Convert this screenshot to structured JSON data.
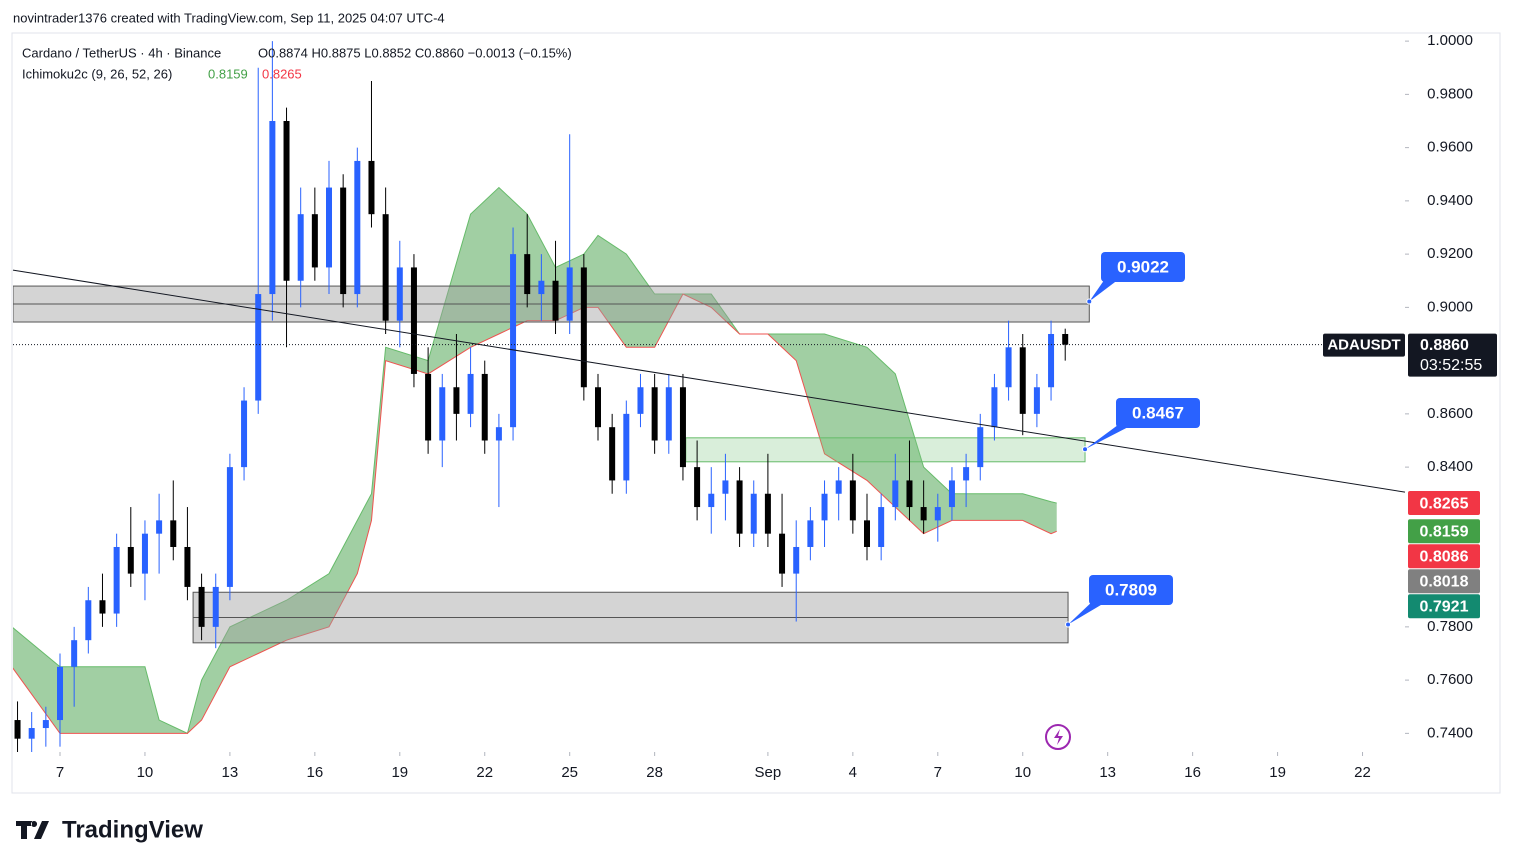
{
  "header": "novintrader1376 created with TradingView.com, Sep 11, 2025 04:07 UTC-4",
  "footer": "TradingView",
  "chart_data": {
    "type": "candlestick",
    "legend": {
      "symbol": "Cardano / TetherUS · 4h · Binance",
      "ohlc": "O0.8874 H0.8875 L0.8852 C0.8860 −0.0013 (−0.15%)",
      "indicator": "Ichimoku2c (9, 26, 52, 26)",
      "indicator_values": [
        {
          "value": 0.8159,
          "label": "0.8159",
          "color": "#43a047"
        },
        {
          "value": 0.8265,
          "label": "0.8265",
          "color": "#f23645"
        }
      ]
    },
    "xlim": [
      -1.66,
      47.5
    ],
    "ylim": [
      0.733,
      1.0023
    ],
    "xticks": [
      {
        "value": 0,
        "label": "7"
      },
      {
        "value": 3,
        "label": "10"
      },
      {
        "value": 6,
        "label": "13"
      },
      {
        "value": 9,
        "label": "16"
      },
      {
        "value": 12,
        "label": "19"
      },
      {
        "value": 15,
        "label": "22"
      },
      {
        "value": 18,
        "label": "25"
      },
      {
        "value": 21,
        "label": "28"
      },
      {
        "value": 25,
        "label": "Sep"
      },
      {
        "value": 28,
        "label": "4"
      },
      {
        "value": 31,
        "label": "7"
      },
      {
        "value": 34,
        "label": "10"
      },
      {
        "value": 37,
        "label": "13"
      },
      {
        "value": 40,
        "label": "16"
      },
      {
        "value": 43,
        "label": "19"
      },
      {
        "value": 46,
        "label": "22"
      }
    ],
    "yticks": [
      {
        "value": 1,
        "label": "1.0000"
      },
      {
        "value": 0.98,
        "label": "0.9800"
      },
      {
        "value": 0.96,
        "label": "0.9600"
      },
      {
        "value": 0.94,
        "label": "0.9400"
      },
      {
        "value": 0.92,
        "label": "0.9200"
      },
      {
        "value": 0.9,
        "label": "0.9000"
      },
      {
        "value": 0.86,
        "label": "0.8600"
      },
      {
        "value": 0.84,
        "label": "0.8400"
      },
      {
        "value": 0.78,
        "label": "0.7800"
      },
      {
        "value": 0.76,
        "label": "0.7600"
      },
      {
        "value": 0.74,
        "label": "0.7400"
      }
    ],
    "up_color": "#2962ff",
    "down_color": "#000000",
    "candles": [
      {
        "x": -1.5,
        "open": 0.745,
        "high": 0.752,
        "low": 0.733,
        "close": 0.738
      },
      {
        "x": -1,
        "open": 0.738,
        "high": 0.748,
        "low": 0.733,
        "close": 0.742
      },
      {
        "x": -0.5,
        "open": 0.742,
        "high": 0.75,
        "low": 0.735,
        "close": 0.745
      },
      {
        "x": 0,
        "open": 0.745,
        "high": 0.77,
        "low": 0.735,
        "close": 0.765
      },
      {
        "x": 0.5,
        "open": 0.765,
        "high": 0.78,
        "low": 0.75,
        "close": 0.775
      },
      {
        "x": 1,
        "open": 0.775,
        "high": 0.795,
        "low": 0.77,
        "close": 0.79
      },
      {
        "x": 1.5,
        "open": 0.79,
        "high": 0.8,
        "low": 0.78,
        "close": 0.785
      },
      {
        "x": 2,
        "open": 0.785,
        "high": 0.815,
        "low": 0.78,
        "close": 0.81
      },
      {
        "x": 2.5,
        "open": 0.81,
        "high": 0.825,
        "low": 0.795,
        "close": 0.8
      },
      {
        "x": 3,
        "open": 0.8,
        "high": 0.82,
        "low": 0.79,
        "close": 0.815
      },
      {
        "x": 3.5,
        "open": 0.815,
        "high": 0.83,
        "low": 0.8,
        "close": 0.82
      },
      {
        "x": 4,
        "open": 0.82,
        "high": 0.835,
        "low": 0.805,
        "close": 0.81
      },
      {
        "x": 4.5,
        "open": 0.81,
        "high": 0.825,
        "low": 0.79,
        "close": 0.795
      },
      {
        "x": 5,
        "open": 0.795,
        "high": 0.8,
        "low": 0.775,
        "close": 0.78
      },
      {
        "x": 5.5,
        "open": 0.78,
        "high": 0.8,
        "low": 0.772,
        "close": 0.795
      },
      {
        "x": 6,
        "open": 0.795,
        "high": 0.845,
        "low": 0.79,
        "close": 0.84
      },
      {
        "x": 6.5,
        "open": 0.84,
        "high": 0.87,
        "low": 0.835,
        "close": 0.865
      },
      {
        "x": 7,
        "open": 0.865,
        "high": 0.99,
        "low": 0.86,
        "close": 0.905
      },
      {
        "x": 7.5,
        "open": 0.905,
        "high": 1.0,
        "low": 0.895,
        "close": 0.97
      },
      {
        "x": 8,
        "open": 0.97,
        "high": 0.975,
        "low": 0.885,
        "close": 0.91
      },
      {
        "x": 8.5,
        "open": 0.91,
        "high": 0.945,
        "low": 0.9,
        "close": 0.935
      },
      {
        "x": 9,
        "open": 0.935,
        "high": 0.945,
        "low": 0.91,
        "close": 0.915
      },
      {
        "x": 9.5,
        "open": 0.915,
        "high": 0.955,
        "low": 0.905,
        "close": 0.945
      },
      {
        "x": 10,
        "open": 0.945,
        "high": 0.95,
        "low": 0.9,
        "close": 0.905
      },
      {
        "x": 10.5,
        "open": 0.905,
        "high": 0.96,
        "low": 0.9,
        "close": 0.955
      },
      {
        "x": 11,
        "open": 0.955,
        "high": 0.985,
        "low": 0.93,
        "close": 0.935
      },
      {
        "x": 11.5,
        "open": 0.935,
        "high": 0.945,
        "low": 0.89,
        "close": 0.895
      },
      {
        "x": 12,
        "open": 0.895,
        "high": 0.925,
        "low": 0.885,
        "close": 0.915
      },
      {
        "x": 12.5,
        "open": 0.915,
        "high": 0.92,
        "low": 0.87,
        "close": 0.875
      },
      {
        "x": 13,
        "open": 0.875,
        "high": 0.885,
        "low": 0.845,
        "close": 0.85
      },
      {
        "x": 13.5,
        "open": 0.85,
        "high": 0.875,
        "low": 0.84,
        "close": 0.87
      },
      {
        "x": 14,
        "open": 0.87,
        "high": 0.89,
        "low": 0.85,
        "close": 0.86
      },
      {
        "x": 14.5,
        "open": 0.86,
        "high": 0.885,
        "low": 0.855,
        "close": 0.875
      },
      {
        "x": 15,
        "open": 0.875,
        "high": 0.88,
        "low": 0.845,
        "close": 0.85
      },
      {
        "x": 15.5,
        "open": 0.85,
        "high": 0.86,
        "low": 0.825,
        "close": 0.855
      },
      {
        "x": 16,
        "open": 0.855,
        "high": 0.93,
        "low": 0.85,
        "close": 0.92
      },
      {
        "x": 16.5,
        "open": 0.92,
        "high": 0.935,
        "low": 0.9,
        "close": 0.905
      },
      {
        "x": 17,
        "open": 0.905,
        "high": 0.92,
        "low": 0.895,
        "close": 0.91
      },
      {
        "x": 17.5,
        "open": 0.91,
        "high": 0.925,
        "low": 0.89,
        "close": 0.895
      },
      {
        "x": 18,
        "open": 0.895,
        "high": 0.965,
        "low": 0.89,
        "close": 0.915
      },
      {
        "x": 18.5,
        "open": 0.915,
        "high": 0.92,
        "low": 0.865,
        "close": 0.87
      },
      {
        "x": 19,
        "open": 0.87,
        "high": 0.875,
        "low": 0.85,
        "close": 0.855
      },
      {
        "x": 19.5,
        "open": 0.855,
        "high": 0.86,
        "low": 0.83,
        "close": 0.835
      },
      {
        "x": 20,
        "open": 0.835,
        "high": 0.865,
        "low": 0.83,
        "close": 0.86
      },
      {
        "x": 20.5,
        "open": 0.86,
        "high": 0.875,
        "low": 0.855,
        "close": 0.87
      },
      {
        "x": 21,
        "open": 0.87,
        "high": 0.875,
        "low": 0.845,
        "close": 0.85
      },
      {
        "x": 21.5,
        "open": 0.85,
        "high": 0.875,
        "low": 0.845,
        "close": 0.87
      },
      {
        "x": 22,
        "open": 0.87,
        "high": 0.875,
        "low": 0.835,
        "close": 0.84
      },
      {
        "x": 22.5,
        "open": 0.84,
        "high": 0.85,
        "low": 0.82,
        "close": 0.825
      },
      {
        "x": 23,
        "open": 0.825,
        "high": 0.84,
        "low": 0.815,
        "close": 0.83
      },
      {
        "x": 23.5,
        "open": 0.83,
        "high": 0.845,
        "low": 0.82,
        "close": 0.835
      },
      {
        "x": 24,
        "open": 0.835,
        "high": 0.84,
        "low": 0.81,
        "close": 0.815
      },
      {
        "x": 24.5,
        "open": 0.815,
        "high": 0.835,
        "low": 0.81,
        "close": 0.83
      },
      {
        "x": 25,
        "open": 0.83,
        "high": 0.845,
        "low": 0.81,
        "close": 0.815
      },
      {
        "x": 25.5,
        "open": 0.815,
        "high": 0.83,
        "low": 0.795,
        "close": 0.8
      },
      {
        "x": 26,
        "open": 0.8,
        "high": 0.82,
        "low": 0.782,
        "close": 0.81
      },
      {
        "x": 26.5,
        "open": 0.81,
        "high": 0.825,
        "low": 0.805,
        "close": 0.82
      },
      {
        "x": 27,
        "open": 0.82,
        "high": 0.835,
        "low": 0.81,
        "close": 0.83
      },
      {
        "x": 27.5,
        "open": 0.83,
        "high": 0.84,
        "low": 0.82,
        "close": 0.835
      },
      {
        "x": 28,
        "open": 0.835,
        "high": 0.845,
        "low": 0.815,
        "close": 0.82
      },
      {
        "x": 28.5,
        "open": 0.82,
        "high": 0.83,
        "low": 0.805,
        "close": 0.81
      },
      {
        "x": 29,
        "open": 0.81,
        "high": 0.83,
        "low": 0.805,
        "close": 0.825
      },
      {
        "x": 29.5,
        "open": 0.825,
        "high": 0.845,
        "low": 0.82,
        "close": 0.835
      },
      {
        "x": 30,
        "open": 0.835,
        "high": 0.85,
        "low": 0.82,
        "close": 0.825
      },
      {
        "x": 30.5,
        "open": 0.825,
        "high": 0.835,
        "low": 0.815,
        "close": 0.82
      },
      {
        "x": 31,
        "open": 0.82,
        "high": 0.83,
        "low": 0.812,
        "close": 0.825
      },
      {
        "x": 31.5,
        "open": 0.825,
        "high": 0.84,
        "low": 0.82,
        "close": 0.835
      },
      {
        "x": 32,
        "open": 0.835,
        "high": 0.845,
        "low": 0.825,
        "close": 0.84
      },
      {
        "x": 32.5,
        "open": 0.84,
        "high": 0.86,
        "low": 0.835,
        "close": 0.855
      },
      {
        "x": 33,
        "open": 0.855,
        "high": 0.875,
        "low": 0.85,
        "close": 0.87
      },
      {
        "x": 33.5,
        "open": 0.87,
        "high": 0.895,
        "low": 0.865,
        "close": 0.885
      },
      {
        "x": 34,
        "open": 0.885,
        "high": 0.89,
        "low": 0.852,
        "close": 0.86
      },
      {
        "x": 34.5,
        "open": 0.86,
        "high": 0.875,
        "low": 0.855,
        "close": 0.87
      },
      {
        "x": 35,
        "open": 0.87,
        "high": 0.895,
        "low": 0.865,
        "close": 0.89
      },
      {
        "x": 35.5,
        "open": 0.89,
        "high": 0.892,
        "low": 0.88,
        "close": 0.886
      }
    ],
    "cloud": {
      "fill": "rgba(67,160,71,0.5)",
      "color_a": "#66bb6a",
      "color_b": "#ef5350",
      "x": [
        -1.7,
        0,
        3,
        3.5,
        4.5,
        5,
        6,
        7,
        8,
        9.5,
        10.5,
        11,
        11.5,
        13,
        14.5,
        15.5,
        16.5,
        17.5,
        18.5,
        19,
        20,
        21,
        22,
        23,
        24,
        25,
        26,
        27,
        28.5,
        29.5,
        30.5,
        31.5,
        33,
        34,
        35,
        35.2
      ],
      "span_a": [
        0.78,
        0.765,
        0.765,
        0.745,
        0.74,
        0.76,
        0.78,
        0.785,
        0.79,
        0.8,
        0.82,
        0.83,
        0.885,
        0.88,
        0.935,
        0.945,
        0.935,
        0.915,
        0.92,
        0.927,
        0.92,
        0.905,
        0.905,
        0.905,
        0.89,
        0.89,
        0.89,
        0.89,
        0.885,
        0.875,
        0.84,
        0.83,
        0.83,
        0.83,
        0.827,
        0.8265
      ],
      "span_b": [
        0.765,
        0.74,
        0.74,
        0.74,
        0.74,
        0.745,
        0.765,
        0.77,
        0.775,
        0.78,
        0.8,
        0.82,
        0.88,
        0.875,
        0.885,
        0.89,
        0.895,
        0.895,
        0.9,
        0.9,
        0.885,
        0.885,
        0.905,
        0.9,
        0.89,
        0.89,
        0.88,
        0.845,
        0.835,
        0.825,
        0.815,
        0.82,
        0.82,
        0.82,
        0.815,
        0.8159
      ]
    },
    "trendline": {
      "x": [
        -1.66,
        47.5
      ],
      "y": [
        0.914,
        0.8306
      ]
    },
    "zones": [
      {
        "level": 0.9022,
        "top": 0.908,
        "bottom": 0.8945,
        "start": -1.66,
        "end": 36.35,
        "fill": "rgba(160,160,160,0.45)",
        "stroke": "#555555"
      },
      {
        "level": 0.8467,
        "top": 0.851,
        "bottom": 0.842,
        "start": 22.1,
        "end": 36.2,
        "fill": "rgba(129,199,132,0.3)",
        "stroke": "#66bb6a"
      },
      {
        "level": 0.7809,
        "top": 0.793,
        "bottom": 0.774,
        "start": 4.7,
        "end": 35.6,
        "fill": "rgba(160,160,160,0.45)",
        "stroke": "#555555"
      }
    ],
    "current": {
      "symbol": "ADAUSDT",
      "price": {
        "value": 0.886,
        "label": "0.8860"
      },
      "countdown": "03:52:55"
    },
    "axis_labels": [
      {
        "value": 0.8265,
        "label": "0.8265",
        "color": "#f23645"
      },
      {
        "value": 0.8159,
        "label": "0.8159",
        "color": "#43a047"
      },
      {
        "value": 0.8086,
        "label": "0.8086",
        "color": "#f23645"
      },
      {
        "value": 0.8018,
        "label": "0.8018",
        "color": "#808080"
      },
      {
        "value": 0.7921,
        "label": "0.7921",
        "color": "#138a70"
      }
    ]
  }
}
